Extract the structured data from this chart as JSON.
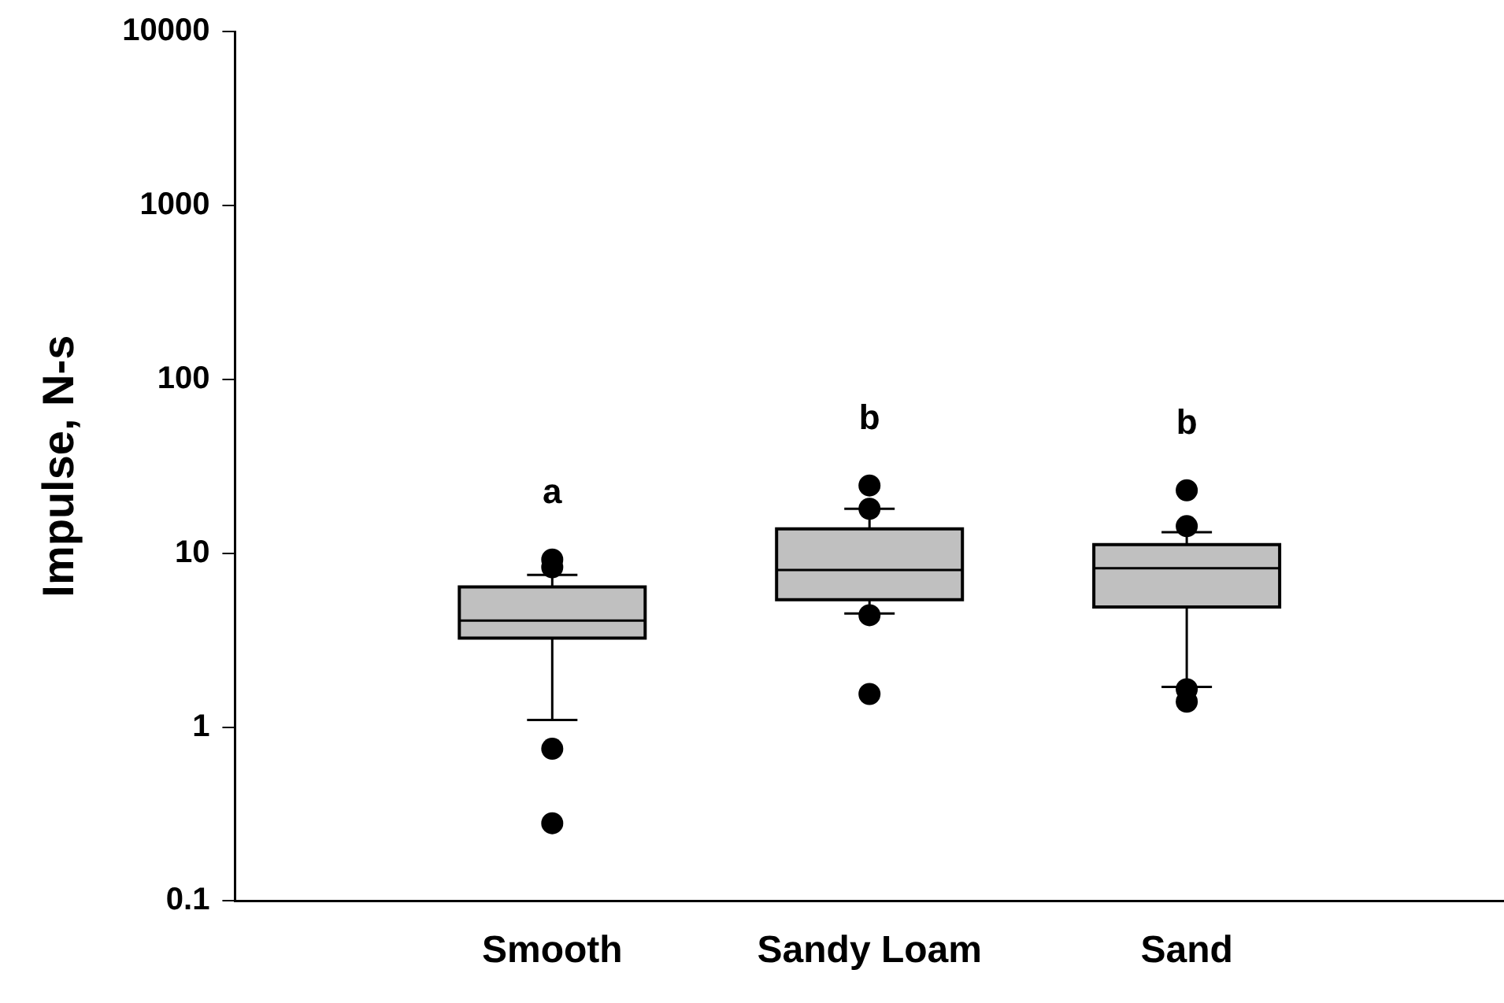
{
  "chart_data": {
    "type": "box",
    "ylabel": "Impulse, N-s",
    "categories": [
      "Smooth",
      "Sandy Loam",
      "Sand"
    ],
    "boxes": [
      {
        "low": 1.1,
        "q1": 3.25,
        "median": 4.1,
        "q3": 6.4,
        "high": 7.5,
        "outliers": [
          9.2,
          8.3,
          0.75,
          0.28
        ]
      },
      {
        "low": 4.5,
        "q1": 5.4,
        "median": 8.0,
        "q3": 13.8,
        "high": 18,
        "outliers": [
          24.5,
          18,
          4.4,
          1.55
        ]
      },
      {
        "low": 1.7,
        "q1": 4.9,
        "median": 8.2,
        "q3": 11.2,
        "high": 13.2,
        "outliers": [
          23,
          14.3,
          1.65,
          1.4
        ]
      }
    ],
    "color": "#c0c0c0",
    "log": "y",
    "ylim": [
      0.1,
      10000
    ],
    "yticks": [
      0.1,
      1,
      10,
      100,
      1000,
      10000
    ],
    "grid": false,
    "legend": false,
    "annotations": [
      "a",
      "b",
      "b"
    ]
  }
}
